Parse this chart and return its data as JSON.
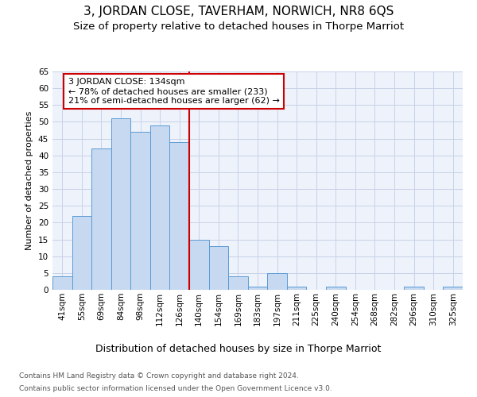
{
  "title": "3, JORDAN CLOSE, TAVERHAM, NORWICH, NR8 6QS",
  "subtitle": "Size of property relative to detached houses in Thorpe Marriot",
  "xlabel": "Distribution of detached houses by size in Thorpe Marriot",
  "ylabel": "Number of detached properties",
  "bar_labels": [
    "41sqm",
    "55sqm",
    "69sqm",
    "84sqm",
    "98sqm",
    "112sqm",
    "126sqm",
    "140sqm",
    "154sqm",
    "169sqm",
    "183sqm",
    "197sqm",
    "211sqm",
    "225sqm",
    "240sqm",
    "254sqm",
    "268sqm",
    "282sqm",
    "296sqm",
    "310sqm",
    "325sqm"
  ],
  "bar_heights": [
    4,
    22,
    42,
    51,
    47,
    49,
    44,
    15,
    13,
    4,
    1,
    5,
    1,
    0,
    1,
    0,
    0,
    0,
    1,
    0,
    1
  ],
  "bar_color": "#c6d9f0",
  "bar_edge_color": "#5b9bd5",
  "grid_color": "#c8d3e8",
  "background_color": "#edf2fb",
  "vline_x_index": 7,
  "vline_color": "#cc0000",
  "annotation_text": "3 JORDAN CLOSE: 134sqm\n← 78% of detached houses are smaller (233)\n21% of semi-detached houses are larger (62) →",
  "annotation_box_color": "#ffffff",
  "annotation_box_edge": "#cc0000",
  "ylim": [
    0,
    65
  ],
  "yticks": [
    0,
    5,
    10,
    15,
    20,
    25,
    30,
    35,
    40,
    45,
    50,
    55,
    60,
    65
  ],
  "footer_line1": "Contains HM Land Registry data © Crown copyright and database right 2024.",
  "footer_line2": "Contains public sector information licensed under the Open Government Licence v3.0.",
  "title_fontsize": 11,
  "subtitle_fontsize": 9.5,
  "xlabel_fontsize": 9,
  "ylabel_fontsize": 8,
  "tick_fontsize": 7.5,
  "footer_fontsize": 6.5,
  "annotation_fontsize": 8
}
